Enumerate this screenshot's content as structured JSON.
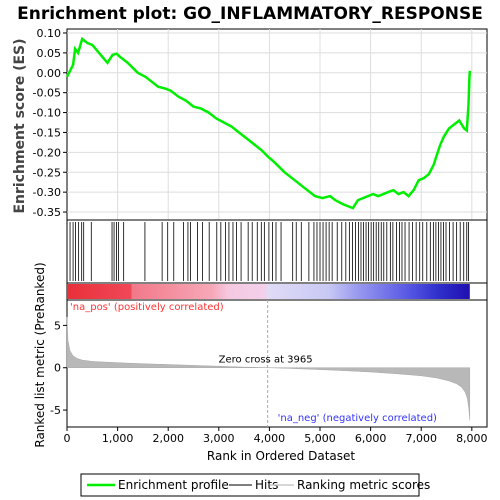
{
  "chart_data": {
    "type": "line",
    "title": "Enrichment plot: GO_INFLAMMATORY_RESPONSE",
    "top_panel": {
      "ylabel": "Enrichment score (ES)",
      "ylim": [
        -0.37,
        0.11
      ],
      "yticks": [
        0.1,
        0.05,
        0.0,
        -0.05,
        -0.1,
        -0.15,
        -0.2,
        -0.25,
        -0.3,
        -0.35
      ],
      "ytick_labels": [
        "0.10",
        "0.05",
        "0.00",
        "-0.05",
        "-0.10",
        "-0.15",
        "-0.20",
        "-0.25",
        "-0.30",
        "-0.35"
      ],
      "grid": true,
      "series": [
        {
          "name": "Enrichment profile",
          "color": "#00ee00",
          "x": [
            0,
            120,
            160,
            220,
            300,
            400,
            500,
            600,
            700,
            800,
            900,
            980,
            1050,
            1200,
            1400,
            1550,
            1700,
            1800,
            1950,
            2050,
            2200,
            2350,
            2500,
            2650,
            2800,
            2950,
            3100,
            3250,
            3400,
            3550,
            3700,
            3850,
            3965,
            4100,
            4300,
            4500,
            4700,
            4900,
            5050,
            5200,
            5300,
            5450,
            5550,
            5650,
            5750,
            5850,
            5950,
            6050,
            6150,
            6250,
            6350,
            6450,
            6550,
            6650,
            6750,
            6850,
            6950,
            7050,
            7150,
            7250,
            7300,
            7380,
            7450,
            7550,
            7650,
            7750,
            7850,
            7900,
            7935,
            7950,
            7960
          ],
          "y": [
            -0.01,
            0.02,
            0.06,
            0.05,
            0.085,
            0.075,
            0.07,
            0.055,
            0.04,
            0.025,
            0.045,
            0.048,
            0.04,
            0.025,
            0.0,
            -0.01,
            -0.025,
            -0.035,
            -0.04,
            -0.045,
            -0.06,
            -0.07,
            -0.085,
            -0.09,
            -0.1,
            -0.115,
            -0.125,
            -0.135,
            -0.15,
            -0.165,
            -0.18,
            -0.195,
            -0.21,
            -0.225,
            -0.25,
            -0.27,
            -0.29,
            -0.31,
            -0.315,
            -0.31,
            -0.32,
            -0.33,
            -0.335,
            -0.34,
            -0.32,
            -0.315,
            -0.31,
            -0.305,
            -0.31,
            -0.305,
            -0.3,
            -0.295,
            -0.305,
            -0.3,
            -0.31,
            -0.295,
            -0.27,
            -0.265,
            -0.255,
            -0.23,
            -0.21,
            -0.18,
            -0.16,
            -0.14,
            -0.13,
            -0.12,
            -0.14,
            -0.145,
            -0.08,
            -0.02,
            0.005
          ]
        }
      ]
    },
    "hits": [
      60,
      120,
      170,
      230,
      290,
      330,
      480,
      890,
      930,
      980,
      1020,
      1120,
      1540,
      1880,
      1990,
      2110,
      2300,
      2390,
      2440,
      2580,
      2680,
      2810,
      2960,
      3040,
      3130,
      3200,
      3280,
      3350,
      3440,
      3580,
      3660,
      3760,
      3840,
      3900,
      3990,
      4060,
      4130,
      4230,
      4460,
      4530,
      4630,
      4780,
      4880,
      4940,
      5000,
      5060,
      5120,
      5180,
      5240,
      5340,
      5430,
      5510,
      5580,
      5640,
      5700,
      5760,
      5810,
      5860,
      5910,
      5960,
      6010,
      6060,
      6110,
      6160,
      6210,
      6260,
      6320,
      6390,
      6440,
      6510,
      6570,
      6620,
      6680,
      6760,
      6830,
      6900,
      6970,
      7030,
      7110,
      7180,
      7240,
      7290,
      7340,
      7390,
      7440,
      7490,
      7560,
      7630,
      7700,
      7770,
      7840,
      7900,
      7935
    ],
    "bottom_panel": {
      "ylabel": "Ranked list metric (PreRanked)",
      "xlabel": "Rank in Ordered Dataset",
      "xlim": [
        0,
        8300
      ],
      "xticks": [
        0,
        1000,
        2000,
        3000,
        4000,
        5000,
        6000,
        7000,
        8000
      ],
      "xtick_labels": [
        "0",
        "1,000",
        "2,000",
        "3,000",
        "4,000",
        "5,000",
        "6,000",
        "7,000",
        "8,000"
      ],
      "ylim": [
        -7,
        8
      ],
      "yticks": [
        5,
        0,
        -5
      ],
      "ytick_labels": [
        "5",
        "0",
        "-5"
      ],
      "zero_cross": 3965,
      "metric_x": [
        0,
        20,
        60,
        120,
        200,
        300,
        500,
        800,
        1200,
        1600,
        2000,
        2500,
        3000,
        3500,
        3965,
        4400,
        5000,
        5500,
        6000,
        6500,
        7000,
        7300,
        7550,
        7700,
        7800,
        7870,
        7910,
        7940,
        7960
      ],
      "metric_y": [
        6.0,
        3.2,
        2.0,
        1.4,
        1.1,
        0.9,
        0.75,
        0.65,
        0.55,
        0.45,
        0.38,
        0.28,
        0.18,
        0.08,
        0.0,
        -0.08,
        -0.22,
        -0.35,
        -0.5,
        -0.7,
        -0.95,
        -1.2,
        -1.55,
        -1.9,
        -2.3,
        -2.9,
        -3.6,
        -4.8,
        -6.2
      ]
    },
    "annotations": {
      "pos_label": "'na_pos' (positively correlated)",
      "neg_label": "'na_neg' (negatively correlated)",
      "zero_cross_label": "Zero cross at 3965"
    },
    "colors": {
      "profile": "#00ee00",
      "pos_text": "#ff3333",
      "neg_text": "#3333ff",
      "hit": "#000000",
      "metric": "#b0b0b0",
      "zero_line": "#aaaaaa"
    },
    "legend": {
      "placement": "bottom",
      "items": [
        {
          "label": "Enrichment profile",
          "color": "#00ee00",
          "kind": "thick-line"
        },
        {
          "label": "Hits",
          "color": "#000000",
          "kind": "line"
        },
        {
          "label": "Ranking metric scores",
          "color": "#c8c8c8",
          "kind": "line"
        }
      ]
    }
  }
}
